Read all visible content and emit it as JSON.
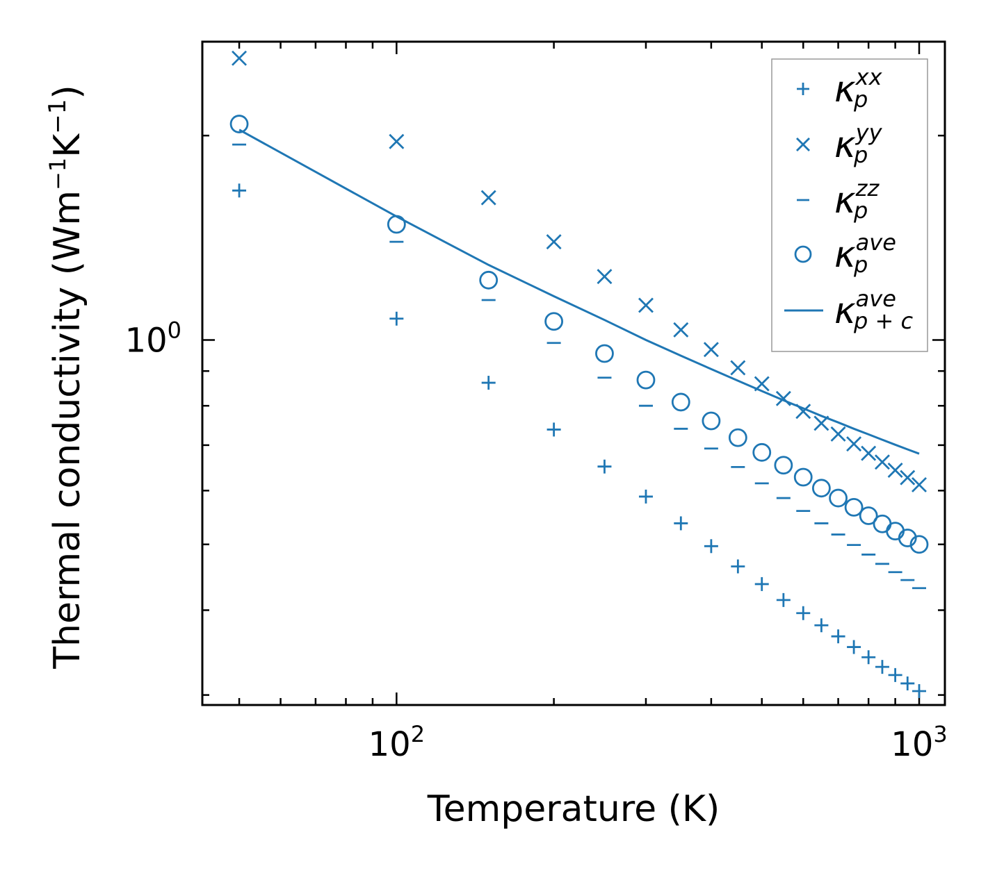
{
  "chart_data": {
    "type": "scatter",
    "title": "",
    "xlabel": "Temperature (K)",
    "ylabel_parts": [
      "Thermal conductivity (Wm",
      "−1",
      "K",
      "−1",
      ")"
    ],
    "xscale": "log",
    "yscale": "log",
    "xlim": [
      42.5,
      1120
    ],
    "ylim": [
      0.29,
      2.75
    ],
    "grid": false,
    "legend_position": "top-right",
    "x_tick_labels": [
      {
        "value": 100,
        "base": "10",
        "exp": "2"
      },
      {
        "value": 1000,
        "base": "10",
        "exp": "3"
      }
    ],
    "y_tick_labels": [
      {
        "value": 1,
        "base": "10",
        "exp": "0"
      }
    ],
    "color": "#1f77b4",
    "x": [
      50,
      100,
      150,
      200,
      250,
      300,
      350,
      400,
      450,
      500,
      550,
      600,
      650,
      700,
      750,
      800,
      850,
      900,
      950,
      1000
    ],
    "series": [
      {
        "name": "kappa_p_xx",
        "label_base": "κ",
        "label_sub": "p",
        "label_sup": "xx",
        "marker": "plus",
        "values": [
          1.66,
          1.075,
          0.865,
          0.738,
          0.651,
          0.588,
          0.537,
          0.497,
          0.464,
          0.437,
          0.414,
          0.396,
          0.38,
          0.366,
          0.353,
          0.341,
          0.33,
          0.321,
          0.312,
          0.304
        ]
      },
      {
        "name": "kappa_p_yy",
        "label_base": "κ",
        "label_sub": "p",
        "label_sup": "yy",
        "marker": "x",
        "values": [
          2.6,
          1.96,
          1.62,
          1.395,
          1.24,
          1.125,
          1.035,
          0.968,
          0.91,
          0.862,
          0.82,
          0.785,
          0.754,
          0.727,
          0.703,
          0.681,
          0.661,
          0.643,
          0.627,
          0.612
        ]
      },
      {
        "name": "kappa_p_zz",
        "label_base": "κ",
        "label_sub": "p",
        "label_sup": "zz",
        "marker": "hline",
        "values": [
          1.94,
          1.395,
          1.145,
          0.99,
          0.88,
          0.8,
          0.74,
          0.692,
          0.65,
          0.615,
          0.585,
          0.56,
          0.537,
          0.517,
          0.499,
          0.483,
          0.468,
          0.455,
          0.443,
          0.431
        ]
      },
      {
        "name": "kappa_p_ave",
        "label_base": "κ",
        "label_sub": "p",
        "label_sup": "ave",
        "marker": "circle",
        "values": [
          2.08,
          1.48,
          1.225,
          1.065,
          0.955,
          0.873,
          0.81,
          0.76,
          0.718,
          0.683,
          0.654,
          0.628,
          0.605,
          0.585,
          0.567,
          0.551,
          0.536,
          0.523,
          0.511,
          0.5
        ]
      },
      {
        "name": "kappa_p_plus_c_ave",
        "label_base": "κ",
        "label_sub": "p + c",
        "label_sup": "ave",
        "marker": "line",
        "values": [
          2.04,
          1.52,
          1.29,
          1.16,
          1.07,
          1.0,
          0.948,
          0.906,
          0.871,
          0.841,
          0.815,
          0.793,
          0.773,
          0.756,
          0.74,
          0.726,
          0.713,
          0.701,
          0.69,
          0.68
        ]
      }
    ]
  }
}
